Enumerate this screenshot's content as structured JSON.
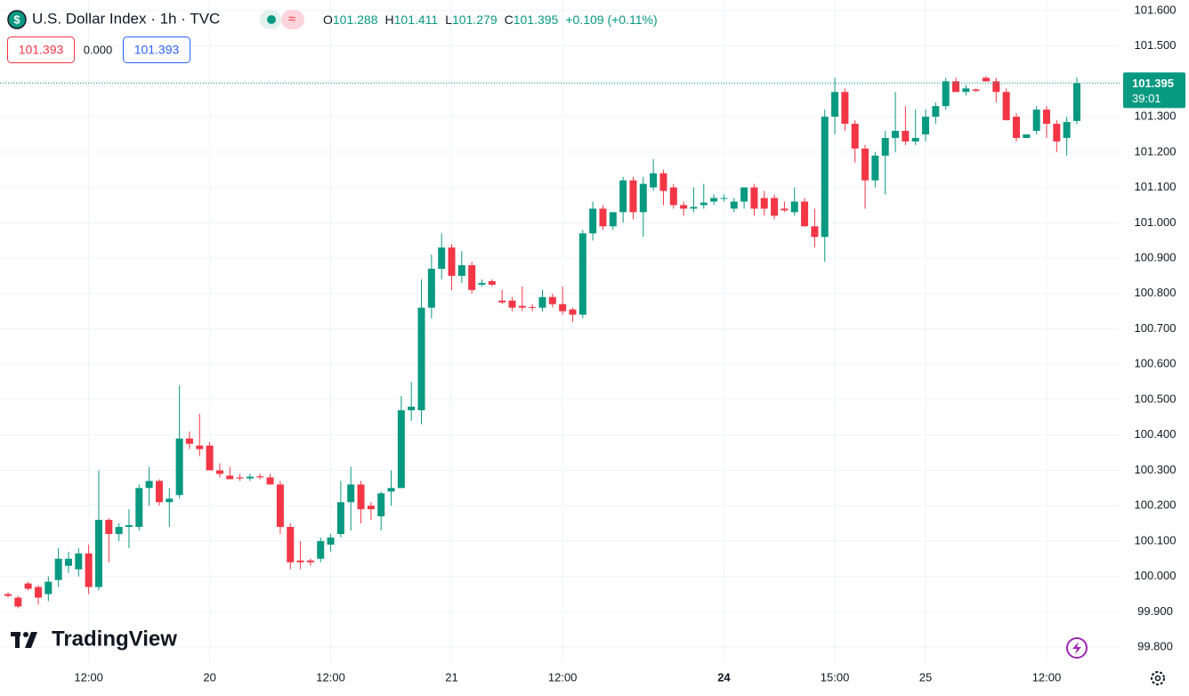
{
  "symbol_icon": "$",
  "toolbar": {
    "bid": "101.393",
    "spread": "0.000",
    "ask": "101.393",
    "ohlc_labels": [
      "O",
      "H",
      "L",
      "C"
    ],
    "change": "+0.109 (+0.11%)"
  },
  "branding": "TradingView",
  "chart_data": {
    "type": "candlestick",
    "title": "U.S. Dollar Index · 1h · TVC",
    "up_color": "#089981",
    "down_color": "#f23645",
    "grid": true,
    "countdown": "39:01",
    "categories": [
      null,
      null,
      null,
      null,
      null,
      null,
      null,
      null,
      "12:00",
      null,
      null,
      null,
      null,
      null,
      null,
      null,
      null,
      null,
      null,
      null,
      "20",
      null,
      null,
      null,
      null,
      null,
      null,
      null,
      null,
      null,
      null,
      null,
      "12:00",
      null,
      null,
      null,
      null,
      null,
      null,
      null,
      null,
      null,
      null,
      null,
      "21",
      null,
      null,
      null,
      null,
      null,
      null,
      null,
      null,
      null,
      null,
      "12:00",
      null,
      null,
      null,
      null,
      null,
      null,
      null,
      null,
      null,
      null,
      null,
      null,
      null,
      null,
      null,
      "24",
      null,
      null,
      null,
      null,
      null,
      null,
      null,
      null,
      null,
      null,
      "15:00",
      null,
      null,
      null,
      null,
      null,
      null,
      null,
      null,
      "25",
      null,
      null,
      null,
      null,
      null,
      null,
      null,
      null,
      null,
      null,
      null,
      "12:00",
      null,
      null,
      null
    ],
    "open": [
      99.95,
      99.94,
      99.98,
      99.97,
      99.95,
      99.99,
      100.03,
      100.02,
      100.065,
      99.97,
      100.16,
      100.12,
      100.14,
      100.14,
      100.25,
      100.27,
      100.21,
      100.23,
      100.39,
      100.37,
      100.37,
      100.3,
      100.285,
      100.28,
      100.277,
      100.283,
      100.28,
      100.26,
      100.14,
      100.045,
      100.045,
      100.05,
      100.09,
      100.12,
      100.21,
      100.26,
      100.2,
      100.17,
      100.24,
      100.25,
      100.47,
      100.47,
      100.76,
      100.87,
      100.93,
      100.85,
      100.88,
      100.825,
      100.835,
      100.78,
      100.78,
      100.765,
      100.762,
      100.76,
      100.79,
      100.77,
      100.755,
      100.74,
      100.97,
      101.04,
      100.99,
      101.03,
      101.12,
      101.03,
      101.1,
      101.14,
      101.1,
      101.05,
      101.04,
      101.05,
      101.06,
      101.07,
      101.04,
      101.06,
      101.1,
      101.07,
      101.07,
      101.04,
      101.03,
      101.06,
      100.99,
      100.96,
      101.3,
      101.37,
      101.28,
      101.21,
      101.12,
      101.19,
      101.24,
      101.26,
      101.23,
      101.25,
      101.3,
      101.33,
      101.4,
      101.37,
      101.377,
      101.41,
      101.4,
      101.37,
      101.3,
      101.24,
      101.26,
      101.32,
      101.28,
      101.24,
      101.288
    ],
    "high": [
      99.955,
      99.945,
      99.985,
      99.975,
      100.0,
      100.08,
      100.07,
      100.08,
      100.09,
      100.3,
      100.165,
      100.15,
      100.19,
      100.26,
      100.31,
      100.275,
      100.25,
      100.54,
      100.41,
      100.46,
      100.38,
      100.32,
      100.31,
      100.29,
      100.29,
      100.29,
      100.29,
      100.27,
      100.15,
      100.1,
      100.05,
      100.11,
      100.12,
      100.27,
      100.31,
      100.27,
      100.21,
      100.24,
      100.3,
      100.51,
      100.55,
      100.84,
      100.91,
      100.97,
      100.94,
      100.92,
      100.89,
      100.84,
      100.84,
      100.81,
      100.79,
      100.82,
      100.77,
      100.81,
      100.8,
      100.82,
      100.76,
      100.98,
      101.06,
      101.05,
      101.03,
      101.13,
      101.13,
      101.13,
      101.18,
      101.15,
      101.11,
      101.06,
      101.1,
      101.11,
      101.08,
      101.08,
      101.07,
      101.1,
      101.11,
      101.09,
      101.08,
      101.06,
      101.1,
      101.07,
      101.04,
      101.32,
      101.41,
      101.38,
      101.29,
      101.22,
      101.2,
      101.26,
      101.37,
      101.33,
      101.32,
      101.32,
      101.34,
      101.41,
      101.41,
      101.39,
      101.38,
      101.415,
      101.41,
      101.38,
      101.31,
      101.25,
      101.33,
      101.33,
      101.29,
      101.3,
      101.411
    ],
    "low": [
      99.94,
      99.91,
      99.96,
      99.92,
      99.93,
      99.97,
      100.01,
      100.0,
      99.95,
      99.96,
      100.04,
      100.1,
      100.08,
      100.13,
      100.2,
      100.2,
      100.14,
      100.22,
      100.36,
      100.34,
      100.3,
      100.28,
      100.275,
      100.27,
      100.27,
      100.275,
      100.26,
      100.12,
      100.02,
      100.02,
      100.03,
      100.04,
      100.07,
      100.11,
      100.13,
      100.15,
      100.16,
      100.13,
      100.2,
      100.25,
      100.44,
      100.43,
      100.73,
      100.84,
      100.81,
      100.83,
      100.8,
      100.82,
      100.82,
      100.77,
      100.75,
      100.75,
      100.75,
      100.75,
      100.76,
      100.74,
      100.72,
      100.73,
      100.95,
      100.98,
      100.98,
      101.0,
      101.01,
      100.96,
      101.09,
      101.05,
      101.04,
      101.02,
      101.03,
      101.04,
      101.05,
      101.06,
      101.03,
      101.04,
      101.02,
      101.02,
      101.01,
      101.03,
      101.02,
      100.99,
      100.93,
      100.89,
      101.25,
      101.26,
      101.17,
      101.04,
      101.1,
      101.08,
      101.2,
      101.22,
      101.22,
      101.23,
      101.28,
      101.32,
      101.37,
      101.36,
      101.37,
      101.4,
      101.34,
      101.29,
      101.23,
      101.24,
      101.25,
      101.24,
      101.2,
      101.19,
      101.279
    ],
    "close": [
      99.945,
      99.915,
      99.965,
      99.94,
      99.985,
      100.05,
      100.05,
      100.065,
      99.97,
      100.16,
      100.12,
      100.14,
      100.145,
      100.25,
      100.27,
      100.21,
      100.22,
      100.39,
      100.375,
      100.36,
      100.3,
      100.29,
      100.275,
      100.277,
      100.282,
      100.28,
      100.26,
      100.14,
      100.04,
      100.04,
      100.04,
      100.1,
      100.11,
      100.21,
      100.26,
      100.19,
      100.19,
      100.235,
      100.25,
      100.47,
      100.48,
      100.76,
      100.87,
      100.93,
      100.85,
      100.88,
      100.81,
      100.83,
      100.825,
      100.775,
      100.76,
      100.76,
      100.76,
      100.79,
      100.77,
      100.75,
      100.74,
      100.97,
      101.04,
      100.99,
      101.03,
      101.12,
      101.03,
      101.11,
      101.14,
      101.09,
      101.05,
      101.04,
      101.045,
      101.057,
      101.07,
      101.07,
      101.06,
      101.1,
      101.04,
      101.04,
      101.02,
      101.035,
      101.06,
      100.99,
      100.96,
      101.3,
      101.37,
      101.28,
      101.21,
      101.12,
      101.19,
      101.24,
      101.26,
      101.23,
      101.24,
      101.3,
      101.33,
      101.4,
      101.37,
      101.38,
      101.373,
      101.4,
      101.37,
      101.29,
      101.24,
      101.25,
      101.32,
      101.28,
      101.23,
      101.285,
      101.395
    ],
    "ylim": [
      99.755,
      101.63
    ],
    "yticks": [
      {
        "value": 99.8,
        "label": "99.800"
      },
      {
        "value": 99.9,
        "label": "99.900"
      },
      {
        "value": 100.0,
        "label": "100.000"
      },
      {
        "value": 100.1,
        "label": "100.100"
      },
      {
        "value": 100.2,
        "label": "100.200"
      },
      {
        "value": 100.3,
        "label": "100.300"
      },
      {
        "value": 100.4,
        "label": "100.400"
      },
      {
        "value": 100.5,
        "label": "100.500"
      },
      {
        "value": 100.6,
        "label": "100.600"
      },
      {
        "value": 100.7,
        "label": "100.700"
      },
      {
        "value": 100.8,
        "label": "100.800"
      },
      {
        "value": 100.9,
        "label": "100.900"
      },
      {
        "value": 101.0,
        "label": "101.000"
      },
      {
        "value": 101.1,
        "label": "101.100"
      },
      {
        "value": 101.2,
        "label": "101.200"
      },
      {
        "value": 101.3,
        "label": "101.300"
      },
      {
        "value": 101.4,
        "label": "101.400"
      },
      {
        "value": 101.5,
        "label": "101.500"
      },
      {
        "value": 101.6,
        "label": "101.600"
      }
    ]
  }
}
